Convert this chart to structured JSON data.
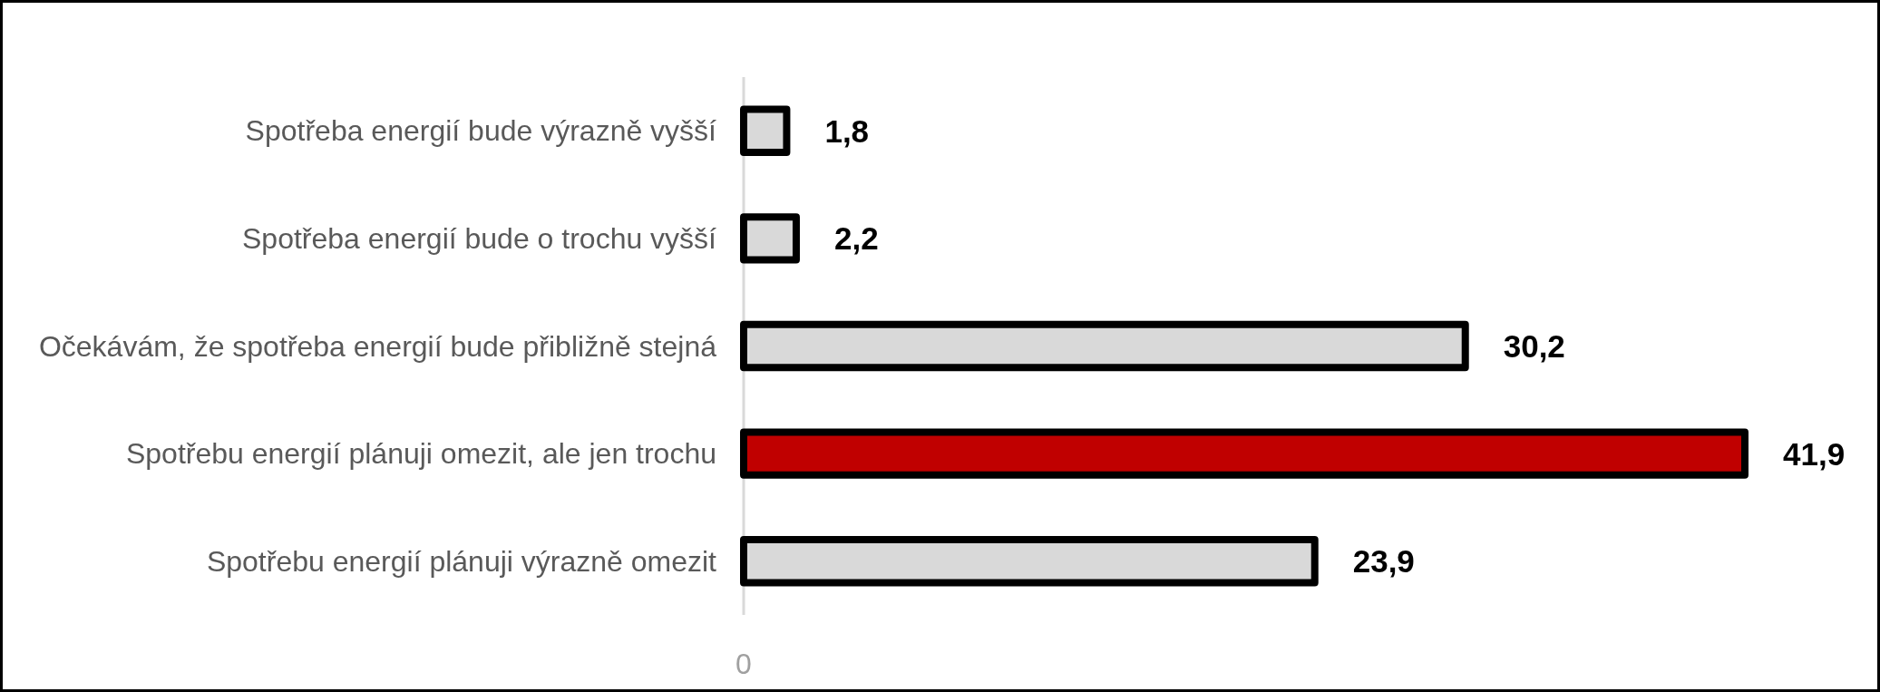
{
  "chart_data": {
    "type": "bar",
    "orientation": "horizontal",
    "categories": [
      "Spotřeba energií bude výrazně vyšší",
      "Spotřeba energií bude o trochu vyšší",
      "Očekávám, že spotřeba energií bude přibližně stejná",
      "Spotřebu energií plánuji omezit, ale jen trochu",
      "Spotřebu energií plánuji výrazně omezit"
    ],
    "values": [
      1.8,
      2.2,
      30.2,
      41.9,
      23.9
    ],
    "colors": [
      "#d9d9d9",
      "#d9d9d9",
      "#d9d9d9",
      "#c00000",
      "#d9d9d9"
    ],
    "value_labels": [
      "1,8",
      "2,2",
      "30,2",
      "41,9",
      "23,9"
    ],
    "annotations": [
      "0"
    ]
  }
}
